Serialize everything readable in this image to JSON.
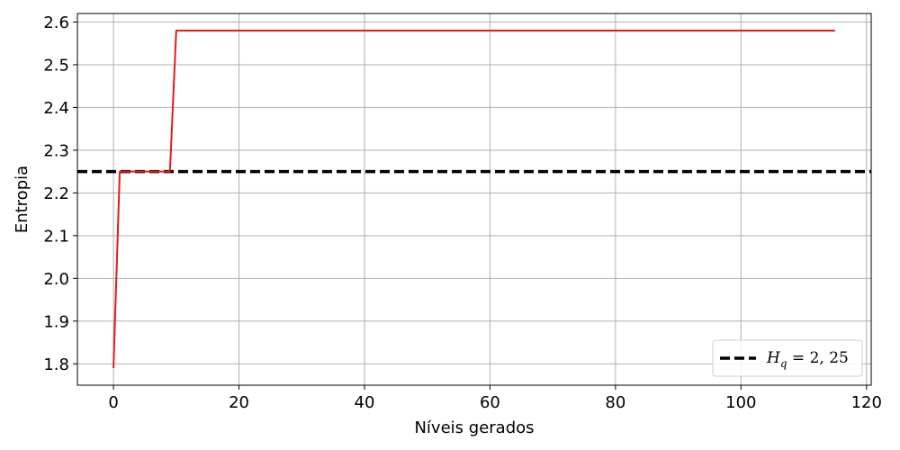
{
  "chart_data": {
    "type": "line",
    "title": "",
    "xlabel": "Níveis gerados",
    "ylabel": "Entropia",
    "xlim": [
      -5.75,
      120.75
    ],
    "ylim": [
      1.75,
      2.62
    ],
    "xticks": [
      0,
      20,
      40,
      60,
      80,
      100,
      120
    ],
    "yticks": [
      1.8,
      1.9,
      2.0,
      2.1,
      2.2,
      2.3,
      2.4,
      2.5,
      2.6
    ],
    "xtick_labels": [
      "0",
      "20",
      "40",
      "60",
      "80",
      "100",
      "120"
    ],
    "ytick_labels": [
      "1.8",
      "1.9",
      "2.0",
      "2.1",
      "2.2",
      "2.3",
      "2.4",
      "2.5",
      "2.6"
    ],
    "grid": true,
    "series": [
      {
        "color": "#e41a1c",
        "style": "solid",
        "x": [
          0,
          1,
          9,
          10,
          115
        ],
        "y": [
          1.79,
          2.25,
          2.25,
          2.58,
          2.58
        ]
      }
    ],
    "reference_lines": [
      {
        "orientation": "horizontal",
        "value": 2.25,
        "color": "#000000",
        "style": "dashed"
      }
    ],
    "legend": {
      "position": "lower-right",
      "entries": [
        {
          "label_base": "H",
          "label_sub": "q",
          "label_rest": " = 2, 25",
          "color": "#000000",
          "style": "dashed"
        }
      ]
    }
  }
}
